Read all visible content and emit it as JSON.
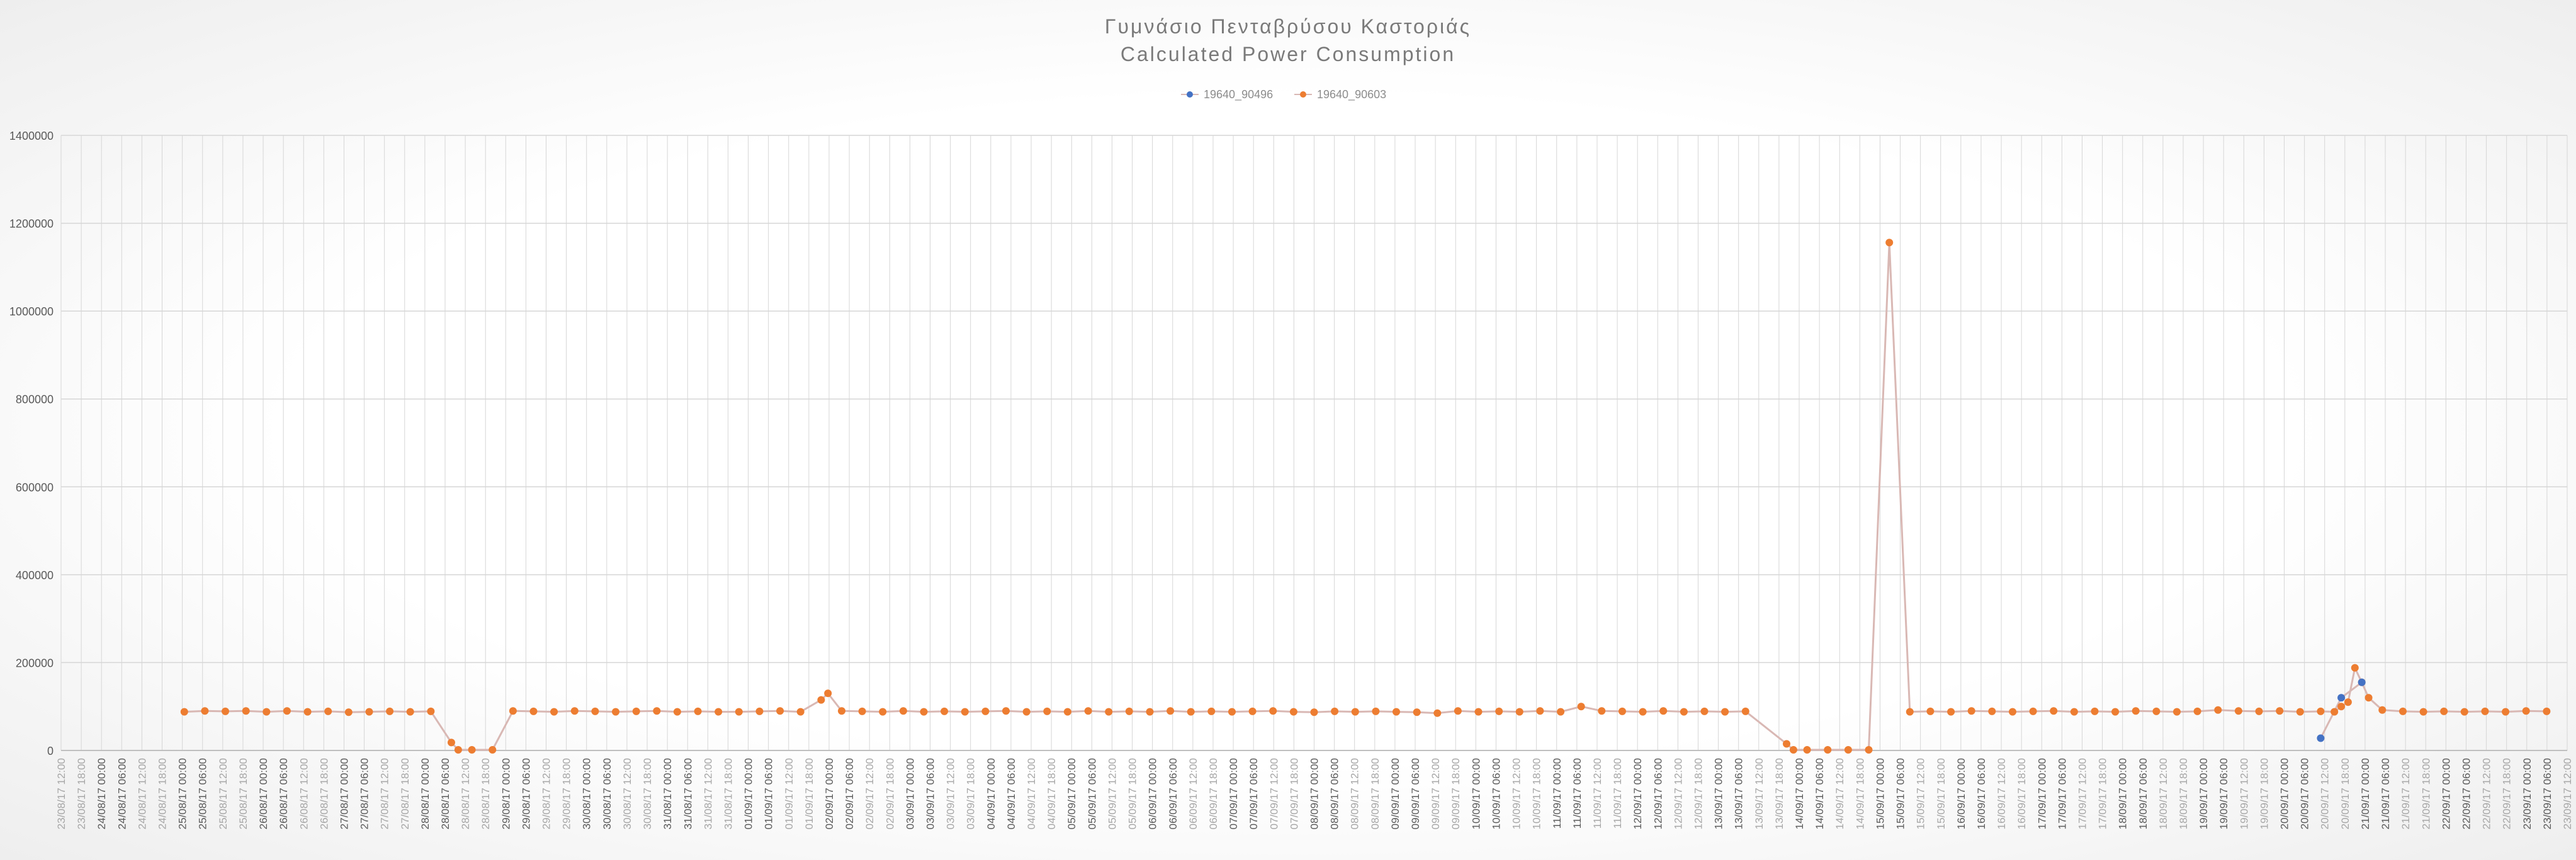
{
  "title_line1": "Γυμνάσιο Πενταβρύσου Καστοριάς",
  "title_line2": "Calculated Power Consumption",
  "chart_data": {
    "type": "line",
    "title": "Γυμνάσιο Πενταβρύσου Καστοριάς Calculated Power Consumption",
    "x_unit": "hours since 23/08/17 12:00",
    "x_range": [
      0,
      732
    ],
    "ylim": [
      0,
      1400000
    ],
    "yticks": [
      0,
      200000,
      400000,
      600000,
      800000,
      1000000,
      1200000,
      1400000
    ],
    "grid": true,
    "legend_position": "top-center",
    "colors": {
      "series_a": "#4472c4",
      "series_b": "#ed7d31",
      "line": "#d9b8b4",
      "grid": "#d6d6d6",
      "axis_text": "#595959",
      "axis_text_light": "#a6a6a6"
    },
    "xtick_labels": [
      "23/08/17 12:00",
      "23/08/17 18:00",
      "24/08/17 00:00",
      "24/08/17 06:00",
      "24/08/17 12:00",
      "24/08/17 18:00",
      "25/08/17 00:00",
      "25/08/17 06:00",
      "25/08/17 12:00",
      "25/08/17 18:00",
      "26/08/17 00:00",
      "26/08/17 06:00",
      "26/08/17 12:00",
      "26/08/17 18:00",
      "27/08/17 00:00",
      "27/08/17 06:00",
      "27/08/17 12:00",
      "27/08/17 18:00",
      "28/08/17 00:00",
      "28/08/17 06:00",
      "28/08/17 12:00",
      "28/08/17 18:00",
      "29/08/17 00:00",
      "29/08/17 06:00",
      "29/08/17 12:00",
      "29/08/17 18:00",
      "30/08/17 00:00",
      "30/08/17 06:00",
      "30/08/17 12:00",
      "30/08/17 18:00",
      "31/08/17 00:00",
      "31/08/17 06:00",
      "31/08/17 12:00",
      "31/08/17 18:00",
      "01/09/17 00:00",
      "01/09/17 06:00",
      "01/09/17 12:00",
      "01/09/17 18:00",
      "02/09/17 00:00",
      "02/09/17 06:00",
      "02/09/17 12:00",
      "02/09/17 18:00",
      "03/09/17 00:00",
      "03/09/17 06:00",
      "03/09/17 12:00",
      "03/09/17 18:00",
      "04/09/17 00:00",
      "04/09/17 06:00",
      "04/09/17 12:00",
      "04/09/17 18:00",
      "05/09/17 00:00",
      "05/09/17 06:00",
      "05/09/17 12:00",
      "05/09/17 18:00",
      "06/09/17 00:00",
      "06/09/17 06:00",
      "06/09/17 12:00",
      "06/09/17 18:00",
      "07/09/17 00:00",
      "07/09/17 06:00",
      "07/09/17 12:00",
      "07/09/17 18:00",
      "08/09/17 00:00",
      "08/09/17 06:00",
      "08/09/17 12:00",
      "08/09/17 18:00",
      "09/09/17 00:00",
      "09/09/17 06:00",
      "09/09/17 12:00",
      "09/09/17 18:00",
      "10/09/17 00:00",
      "10/09/17 06:00",
      "10/09/17 12:00",
      "10/09/17 18:00",
      "11/09/17 00:00",
      "11/09/17 06:00",
      "11/09/17 12:00",
      "11/09/17 18:00",
      "12/09/17 00:00",
      "12/09/17 06:00",
      "12/09/17 12:00",
      "12/09/17 18:00",
      "13/09/17 00:00",
      "13/09/17 06:00",
      "13/09/17 12:00",
      "13/09/17 18:00",
      "14/09/17 00:00",
      "14/09/17 06:00",
      "14/09/17 12:00",
      "14/09/17 18:00",
      "15/09/17 00:00",
      "15/09/17 06:00",
      "15/09/17 12:00",
      "15/09/17 18:00",
      "16/09/17 00:00",
      "16/09/17 06:00",
      "16/09/17 12:00",
      "16/09/17 18:00",
      "17/09/17 00:00",
      "17/09/17 06:00",
      "17/09/17 12:00",
      "17/09/17 18:00",
      "18/09/17 00:00",
      "18/09/17 06:00",
      "18/09/17 12:00",
      "18/09/17 18:00",
      "19/09/17 00:00",
      "19/09/17 06:00",
      "19/09/17 12:00",
      "19/09/17 18:00",
      "20/09/17 00:00",
      "20/09/17 06:00",
      "20/09/17 12:00",
      "20/09/17 18:00",
      "21/09/17 00:00",
      "21/09/17 06:00",
      "21/09/17 12:00",
      "21/09/17 18:00",
      "22/09/17 00:00",
      "22/09/17 06:00",
      "22/09/17 12:00",
      "22/09/17 18:00",
      "23/09/17 00:00",
      "23/09/17 06:00",
      "23/09/17 12:00"
    ],
    "series": [
      {
        "name": "19640_90496",
        "color": "#4472c4",
        "points": [
          [
            660,
            28000
          ],
          [
            666,
            120000
          ],
          [
            672,
            155000
          ]
        ]
      },
      {
        "name": "19640_90603",
        "color": "#ed7d31",
        "points": [
          [
            36,
            88000
          ],
          [
            42,
            90000
          ],
          [
            48,
            89000
          ],
          [
            54,
            90000
          ],
          [
            60,
            88000
          ],
          [
            66,
            90000
          ],
          [
            72,
            88000
          ],
          [
            78,
            89000
          ],
          [
            84,
            87000
          ],
          [
            90,
            88000
          ],
          [
            96,
            89000
          ],
          [
            102,
            88000
          ],
          [
            108,
            89000
          ],
          [
            114,
            18000
          ],
          [
            116,
            1500
          ],
          [
            120,
            1500
          ],
          [
            126,
            1500
          ],
          [
            132,
            90000
          ],
          [
            138,
            89000
          ],
          [
            144,
            88000
          ],
          [
            150,
            90000
          ],
          [
            156,
            89000
          ],
          [
            162,
            88000
          ],
          [
            168,
            89000
          ],
          [
            174,
            90000
          ],
          [
            180,
            88000
          ],
          [
            186,
            89000
          ],
          [
            192,
            88000
          ],
          [
            198,
            88000
          ],
          [
            204,
            89000
          ],
          [
            210,
            90000
          ],
          [
            216,
            88000
          ],
          [
            222,
            115000
          ],
          [
            224,
            130000
          ],
          [
            228,
            90000
          ],
          [
            234,
            89000
          ],
          [
            240,
            88000
          ],
          [
            246,
            90000
          ],
          [
            252,
            88000
          ],
          [
            258,
            89000
          ],
          [
            264,
            88000
          ],
          [
            270,
            89000
          ],
          [
            276,
            90000
          ],
          [
            282,
            88000
          ],
          [
            288,
            89000
          ],
          [
            294,
            88000
          ],
          [
            300,
            90000
          ],
          [
            306,
            88000
          ],
          [
            312,
            89000
          ],
          [
            318,
            88000
          ],
          [
            324,
            90000
          ],
          [
            330,
            88000
          ],
          [
            336,
            89000
          ],
          [
            342,
            88000
          ],
          [
            348,
            89000
          ],
          [
            354,
            90000
          ],
          [
            360,
            88000
          ],
          [
            366,
            87000
          ],
          [
            372,
            89000
          ],
          [
            378,
            88000
          ],
          [
            384,
            89000
          ],
          [
            390,
            88000
          ],
          [
            396,
            87000
          ],
          [
            402,
            85000
          ],
          [
            408,
            90000
          ],
          [
            414,
            88000
          ],
          [
            420,
            89000
          ],
          [
            426,
            88000
          ],
          [
            432,
            90000
          ],
          [
            438,
            88000
          ],
          [
            444,
            100000
          ],
          [
            450,
            90000
          ],
          [
            456,
            89000
          ],
          [
            462,
            88000
          ],
          [
            468,
            90000
          ],
          [
            474,
            88000
          ],
          [
            480,
            89000
          ],
          [
            486,
            88000
          ],
          [
            492,
            89000
          ],
          [
            504,
            15000
          ],
          [
            506,
            1500
          ],
          [
            510,
            1500
          ],
          [
            516,
            1500
          ],
          [
            522,
            1500
          ],
          [
            528,
            1500
          ],
          [
            534,
            1156000
          ],
          [
            540,
            88000
          ],
          [
            546,
            89000
          ],
          [
            552,
            88000
          ],
          [
            558,
            90000
          ],
          [
            564,
            89000
          ],
          [
            570,
            88000
          ],
          [
            576,
            89000
          ],
          [
            582,
            90000
          ],
          [
            588,
            88000
          ],
          [
            594,
            89000
          ],
          [
            600,
            88000
          ],
          [
            606,
            90000
          ],
          [
            612,
            89000
          ],
          [
            618,
            88000
          ],
          [
            624,
            89000
          ],
          [
            630,
            92000
          ],
          [
            636,
            90000
          ],
          [
            642,
            89000
          ],
          [
            648,
            90000
          ],
          [
            654,
            88000
          ],
          [
            660,
            89000
          ],
          [
            664,
            88000
          ],
          [
            666,
            100000
          ],
          [
            668,
            110000
          ],
          [
            670,
            188000
          ],
          [
            672,
            155000
          ],
          [
            674,
            120000
          ],
          [
            678,
            92000
          ],
          [
            684,
            89000
          ],
          [
            690,
            88000
          ],
          [
            696,
            89000
          ],
          [
            702,
            88000
          ],
          [
            708,
            89000
          ],
          [
            714,
            88000
          ],
          [
            720,
            90000
          ],
          [
            726,
            89000
          ]
        ]
      }
    ]
  },
  "legend": [
    {
      "name": "19640_90496",
      "color": "#4472c4"
    },
    {
      "name": "19640_90603",
      "color": "#ed7d31"
    }
  ],
  "ytick_labels": [
    "0",
    "200000",
    "400000",
    "600000",
    "800000",
    "1000000",
    "1200000",
    "1400000"
  ]
}
